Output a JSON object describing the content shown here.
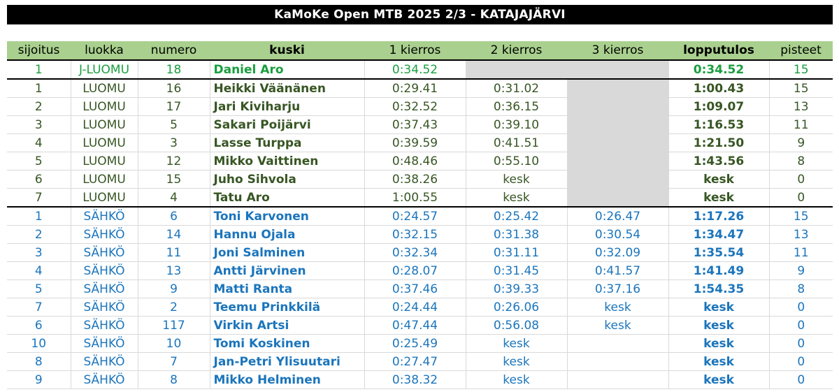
{
  "title": "KaMoKe Open MTB 2025 2/3 - KATAJAJÄRVI",
  "headers": [
    "sijoitus",
    "luokka",
    "numero",
    "kuski",
    "1 kierros",
    "2 kierros",
    "3 kierros",
    "lopputulos",
    "pisteet"
  ],
  "rows": [
    {
      "group": "jluomu",
      "sijoitus": "1",
      "luokka": "J-LUOMU",
      "numero": "18",
      "kuski": "Daniel Aro",
      "k1": "0:34.52",
      "k2": "",
      "k3": "",
      "lopputulos": "0:34.52",
      "pisteet": "15",
      "k2_empty": true,
      "k3_empty": true,
      "group_start": true
    },
    {
      "group": "luomu",
      "sijoitus": "1",
      "luokka": "LUOMU",
      "numero": "16",
      "kuski": "Heikki Väänänen",
      "k1": "0:29.41",
      "k2": "0:31.02",
      "k3": "",
      "lopputulos": "1:00.43",
      "pisteet": "15",
      "k3_empty": true,
      "group_start": true
    },
    {
      "group": "luomu",
      "sijoitus": "2",
      "luokka": "LUOMU",
      "numero": "17",
      "kuski": "Jari Kiviharju",
      "k1": "0:32.52",
      "k2": "0:36.15",
      "k3": "",
      "lopputulos": "1:09.07",
      "pisteet": "13",
      "k3_empty": true
    },
    {
      "group": "luomu",
      "sijoitus": "3",
      "luokka": "LUOMU",
      "numero": "5",
      "kuski": "Sakari Poijärvi",
      "k1": "0:37.43",
      "k2": "0:39.10",
      "k3": "",
      "lopputulos": "1:16.53",
      "pisteet": "11",
      "k3_empty": true
    },
    {
      "group": "luomu",
      "sijoitus": "4",
      "luokka": "LUOMU",
      "numero": "3",
      "kuski": "Lasse Turppa",
      "k1": "0:39.59",
      "k2": "0:41.51",
      "k3": "",
      "lopputulos": "1:21.50",
      "pisteet": "9",
      "k3_empty": true
    },
    {
      "group": "luomu",
      "sijoitus": "5",
      "luokka": "LUOMU",
      "numero": "12",
      "kuski": "Mikko Vaittinen",
      "k1": "0:48.46",
      "k2": "0:55.10",
      "k3": "",
      "lopputulos": "1:43.56",
      "pisteet": "8",
      "k3_empty": true
    },
    {
      "group": "luomu",
      "sijoitus": "6",
      "luokka": "LUOMU",
      "numero": "15",
      "kuski": "Juho Sihvola",
      "k1": "0:38.26",
      "k2": "kesk",
      "k3": "",
      "lopputulos": "kesk",
      "pisteet": "0",
      "k3_empty": true
    },
    {
      "group": "luomu",
      "sijoitus": "7",
      "luokka": "LUOMU",
      "numero": "4",
      "kuski": "Tatu Aro",
      "k1": "1:00.55",
      "k2": "kesk",
      "k3": "",
      "lopputulos": "kesk",
      "pisteet": "0",
      "k3_empty": true
    },
    {
      "group": "sahko",
      "sijoitus": "1",
      "luokka": "SÄHKÖ",
      "numero": "6",
      "kuski": "Toni Karvonen",
      "k1": "0:24.57",
      "k2": "0:25.42",
      "k3": "0:26.47",
      "lopputulos": "1:17.26",
      "pisteet": "15",
      "group_start": true
    },
    {
      "group": "sahko",
      "sijoitus": "2",
      "luokka": "SÄHKÖ",
      "numero": "14",
      "kuski": "Hannu Ojala",
      "k1": "0:32.15",
      "k2": "0:31.38",
      "k3": "0:30.54",
      "lopputulos": "1:34.47",
      "pisteet": "13"
    },
    {
      "group": "sahko",
      "sijoitus": "3",
      "luokka": "SÄHKÖ",
      "numero": "11",
      "kuski": "Joni Salminen",
      "k1": "0:32.34",
      "k2": "0:31.11",
      "k3": "0:32.09",
      "lopputulos": "1:35.54",
      "pisteet": "11"
    },
    {
      "group": "sahko",
      "sijoitus": "4",
      "luokka": "SÄHKÖ",
      "numero": "13",
      "kuski": "Antti Järvinen",
      "k1": "0:28.07",
      "k2": "0:31.45",
      "k3": "0:41.57",
      "lopputulos": "1:41.49",
      "pisteet": "9"
    },
    {
      "group": "sahko",
      "sijoitus": "5",
      "luokka": "SÄHKÖ",
      "numero": "9",
      "kuski": "Matti Ranta",
      "k1": "0:37.46",
      "k2": "0:39.33",
      "k3": "0:37.16",
      "lopputulos": "1:54.35",
      "pisteet": "8"
    },
    {
      "group": "sahko",
      "sijoitus": "7",
      "luokka": "SÄHKÖ",
      "numero": "2",
      "kuski": "Teemu Prinkkilä",
      "k1": "0:24.44",
      "k2": "0:26.06",
      "k3": "kesk",
      "lopputulos": "kesk",
      "pisteet": "0"
    },
    {
      "group": "sahko",
      "sijoitus": "6",
      "luokka": "SÄHKÖ",
      "numero": "117",
      "kuski": "Virkin Artsi",
      "k1": "0:47.44",
      "k2": "0:56.08",
      "k3": "kesk",
      "lopputulos": "kesk",
      "pisteet": "0"
    },
    {
      "group": "sahko",
      "sijoitus": "10",
      "luokka": "SÄHKÖ",
      "numero": "10",
      "kuski": "Tomi Koskinen",
      "k1": "0:25.49",
      "k2": "kesk",
      "k3": "",
      "lopputulos": "kesk",
      "pisteet": "0"
    },
    {
      "group": "sahko",
      "sijoitus": "8",
      "luokka": "SÄHKÖ",
      "numero": "7",
      "kuski": "Jan-Petri Ylisuutari",
      "k1": "0:27.47",
      "k2": "kesk",
      "k3": "",
      "lopputulos": "kesk",
      "pisteet": "0"
    },
    {
      "group": "sahko",
      "sijoitus": "9",
      "luokka": "SÄHKÖ",
      "numero": "8",
      "kuski": "Mikko Helminen",
      "k1": "0:38.32",
      "k2": "kesk",
      "k3": "",
      "lopputulos": "kesk",
      "pisteet": "0"
    }
  ],
  "colors": {
    "jluomu": "#1a9e3f",
    "luomu": "#375623",
    "sahko": "#1b75bc",
    "header_bg": "#a9d08e",
    "empty_cell": "#d9d9d9"
  }
}
